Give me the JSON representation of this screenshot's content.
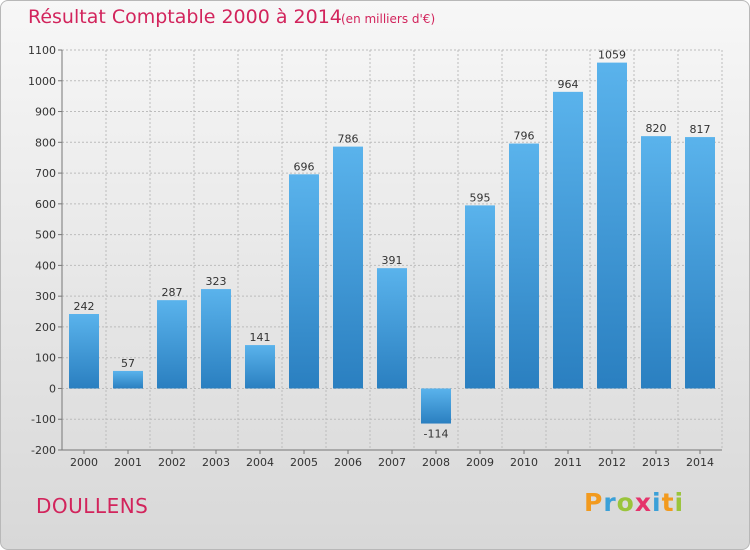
{
  "header": {
    "title": "Résultat Comptable 2000 à 2014",
    "subtitle": "(en milliers d'€)"
  },
  "footer": {
    "commune": "DOULLENS",
    "brand_letters": [
      "P",
      "r",
      "o",
      "x",
      "i",
      "t",
      "i"
    ],
    "brand_colors": [
      "#f29a1e",
      "#3aa0d8",
      "#9ac43b",
      "#e5336b",
      "#3aa0d8",
      "#f29a1e",
      "#9ac43b"
    ]
  },
  "colors": {
    "bar_top": "#5ab3ec",
    "bar_bottom": "#2a7fc0",
    "grid": "#bcbcbc",
    "axis": "#777777",
    "text": "#333333"
  },
  "chart_data": {
    "type": "bar",
    "title": "Résultat Comptable 2000 à 2014",
    "subtitle": "(en milliers d'€)",
    "xlabel": "",
    "ylabel": "",
    "categories": [
      "2000",
      "2001",
      "2002",
      "2003",
      "2004",
      "2005",
      "2006",
      "2007",
      "2008",
      "2009",
      "2010",
      "2011",
      "2012",
      "2013",
      "2014"
    ],
    "values": [
      242,
      57,
      287,
      323,
      141,
      696,
      786,
      391,
      -114,
      595,
      796,
      964,
      1059,
      820,
      817
    ],
    "value_labels": [
      "242",
      "57",
      "287",
      "323",
      "141",
      "696",
      "786",
      "391",
      "-114",
      "595",
      "796",
      "964",
      "1059",
      "820",
      "817"
    ],
    "yticks": [
      -200,
      -100,
      0,
      100,
      200,
      300,
      400,
      500,
      600,
      700,
      800,
      900,
      1000,
      1100
    ],
    "ytick_labels": [
      "-200",
      "-100",
      "0",
      "100",
      "200",
      "300",
      "400",
      "500",
      "600",
      "700",
      "800",
      "900",
      "1000",
      "1100"
    ],
    "ylim": [
      -200,
      1100
    ],
    "grid": true,
    "legend": "none"
  }
}
